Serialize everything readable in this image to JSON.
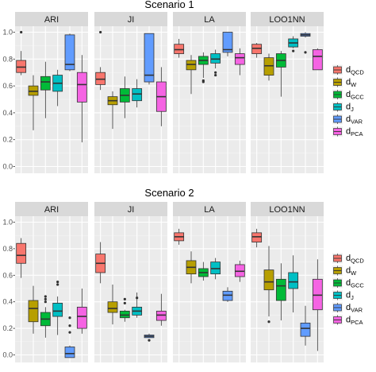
{
  "chart_data": {
    "type": "boxplot",
    "facets": [
      "ARI",
      "JI",
      "LA",
      "LOO1NN"
    ],
    "yticks": [
      "0.0",
      "0.2",
      "0.4",
      "0.6",
      "0.8",
      "1.0"
    ],
    "legend": [
      {
        "main": "d",
        "sub": "QCD",
        "color": "#F8766D"
      },
      {
        "main": "d",
        "sub": "W",
        "color": "#B79F00"
      },
      {
        "main": "d",
        "sub": "GCC",
        "color": "#00BA38"
      },
      {
        "main": "d",
        "sub": "J",
        "color": "#00BFC4"
      },
      {
        "main": "d",
        "sub": "VAR",
        "color": "#619CFF"
      },
      {
        "main": "d",
        "sub": "PCA",
        "color": "#F564E3"
      }
    ],
    "panels": [
      {
        "title": "Scenario 1",
        "ylim": [
          -0.02,
          1.05
        ],
        "facets": [
          {
            "name": "ARI",
            "boxes": [
              {
                "lo": 0.68,
                "q1": 0.7,
                "med": 0.74,
                "q3": 0.79,
                "hi": 0.86,
                "out": [
                  1.0
                ]
              },
              {
                "lo": 0.27,
                "q1": 0.53,
                "med": 0.56,
                "q3": 0.6,
                "hi": 0.68,
                "out": []
              },
              {
                "lo": 0.36,
                "q1": 0.57,
                "med": 0.63,
                "q3": 0.67,
                "hi": 0.78,
                "out": []
              },
              {
                "lo": 0.45,
                "q1": 0.56,
                "med": 0.62,
                "q3": 0.68,
                "hi": 0.72,
                "out": []
              },
              {
                "lo": 0.71,
                "q1": 0.72,
                "med": 0.76,
                "q3": 0.98,
                "hi": 0.99,
                "out": []
              },
              {
                "lo": 0.18,
                "q1": 0.48,
                "med": 0.61,
                "q3": 0.7,
                "hi": 0.83,
                "out": []
              }
            ]
          },
          {
            "name": "JI",
            "boxes": [
              {
                "lo": 0.57,
                "q1": 0.61,
                "med": 0.65,
                "q3": 0.7,
                "hi": 0.74,
                "out": [
                  1.0
                ]
              },
              {
                "lo": 0.28,
                "q1": 0.46,
                "med": 0.49,
                "q3": 0.52,
                "hi": 0.56,
                "out": []
              },
              {
                "lo": 0.36,
                "q1": 0.48,
                "med": 0.53,
                "q3": 0.58,
                "hi": 0.67,
                "out": []
              },
              {
                "lo": 0.44,
                "q1": 0.49,
                "med": 0.54,
                "q3": 0.58,
                "hi": 0.65,
                "out": []
              },
              {
                "lo": 0.61,
                "q1": 0.63,
                "med": 0.68,
                "q3": 0.99,
                "hi": 0.99,
                "out": []
              },
              {
                "lo": 0.3,
                "q1": 0.41,
                "med": 0.52,
                "q3": 0.63,
                "hi": 0.74,
                "out": []
              }
            ]
          },
          {
            "name": "LA",
            "boxes": [
              {
                "lo": 0.81,
                "q1": 0.84,
                "med": 0.87,
                "q3": 0.91,
                "hi": 0.95,
                "out": []
              },
              {
                "lo": 0.54,
                "q1": 0.72,
                "med": 0.76,
                "q3": 0.79,
                "hi": 0.83,
                "out": []
              },
              {
                "lo": 0.66,
                "q1": 0.76,
                "med": 0.79,
                "q3": 0.82,
                "hi": 0.85,
                "out": [
                  0.64,
                  0.63
                ]
              },
              {
                "lo": 0.73,
                "q1": 0.77,
                "med": 0.8,
                "q3": 0.84,
                "hi": 0.87,
                "out": [
                  0.7,
                  0.68
                ]
              },
              {
                "lo": 0.82,
                "q1": 0.85,
                "med": 0.87,
                "q3": 1.0,
                "hi": 1.0,
                "out": []
              },
              {
                "lo": 0.68,
                "q1": 0.76,
                "med": 0.81,
                "q3": 0.84,
                "hi": 0.88,
                "out": []
              }
            ]
          },
          {
            "name": "LOO1NN",
            "boxes": [
              {
                "lo": 0.81,
                "q1": 0.84,
                "med": 0.88,
                "q3": 0.91,
                "hi": 0.92,
                "out": []
              },
              {
                "lo": 0.64,
                "q1": 0.68,
                "med": 0.75,
                "q3": 0.81,
                "hi": 0.84,
                "out": []
              },
              {
                "lo": 0.52,
                "q1": 0.74,
                "med": 0.79,
                "q3": 0.84,
                "hi": 0.86,
                "out": []
              },
              {
                "lo": 0.88,
                "q1": 0.89,
                "med": 0.92,
                "q3": 0.95,
                "hi": 0.97,
                "out": [
                  0.86
                ]
              },
              {
                "lo": 0.96,
                "q1": 0.97,
                "med": 0.98,
                "q3": 0.99,
                "hi": 1.0,
                "out": [
                  0.85
                ]
              },
              {
                "lo": 0.72,
                "q1": 0.72,
                "med": 0.82,
                "q3": 0.87,
                "hi": 0.88,
                "out": []
              }
            ]
          }
        ]
      },
      {
        "title": "Scenario 2",
        "ylim": [
          -0.03,
          1.04
        ],
        "facets": [
          {
            "name": "ARI",
            "boxes": [
              {
                "lo": 0.58,
                "q1": 0.69,
                "med": 0.75,
                "q3": 0.84,
                "hi": 0.88,
                "out": []
              },
              {
                "lo": 0.16,
                "q1": 0.25,
                "med": 0.35,
                "q3": 0.41,
                "hi": 0.52,
                "out": []
              },
              {
                "lo": 0.13,
                "q1": 0.22,
                "med": 0.27,
                "q3": 0.32,
                "hi": 0.36,
                "out": [
                  0.4,
                  0.42,
                  0.44
                ]
              },
              {
                "lo": 0.15,
                "q1": 0.29,
                "med": 0.33,
                "q3": 0.39,
                "hi": 0.44,
                "out": [
                  0.53,
                  0.55
                ]
              },
              {
                "lo": -0.02,
                "q1": -0.02,
                "med": 0.01,
                "q3": 0.06,
                "hi": 0.07,
                "out": [
                  0.17,
                  0.22,
                  0.28
                ]
              },
              {
                "lo": 0.16,
                "q1": 0.2,
                "med": 0.29,
                "q3": 0.36,
                "hi": 0.5,
                "out": []
              }
            ]
          },
          {
            "name": "JI",
            "boxes": [
              {
                "lo": 0.54,
                "q1": 0.62,
                "med": 0.69,
                "q3": 0.76,
                "hi": 0.85,
                "out": []
              },
              {
                "lo": 0.23,
                "q1": 0.32,
                "med": 0.35,
                "q3": 0.4,
                "hi": 0.53,
                "out": []
              },
              {
                "lo": 0.25,
                "q1": 0.28,
                "med": 0.3,
                "q3": 0.33,
                "hi": 0.34,
                "out": [
                  0.39,
                  0.42
                ]
              },
              {
                "lo": 0.28,
                "q1": 0.3,
                "med": 0.33,
                "q3": 0.36,
                "hi": 0.47,
                "out": [
                  0.43
                ]
              },
              {
                "lo": 0.13,
                "q1": 0.13,
                "med": 0.14,
                "q3": 0.15,
                "hi": 0.16,
                "out": [
                  0.11
                ]
              },
              {
                "lo": 0.22,
                "q1": 0.26,
                "med": 0.3,
                "q3": 0.33,
                "hi": 0.46,
                "out": []
              }
            ]
          },
          {
            "name": "LA",
            "boxes": [
              {
                "lo": 0.83,
                "q1": 0.86,
                "med": 0.89,
                "q3": 0.92,
                "hi": 0.95,
                "out": []
              },
              {
                "lo": 0.54,
                "q1": 0.61,
                "med": 0.66,
                "q3": 0.71,
                "hi": 0.78,
                "out": []
              },
              {
                "lo": 0.56,
                "q1": 0.59,
                "med": 0.62,
                "q3": 0.65,
                "hi": 0.7,
                "out": []
              },
              {
                "lo": 0.57,
                "q1": 0.61,
                "med": 0.65,
                "q3": 0.7,
                "hi": 0.73,
                "out": []
              },
              {
                "lo": 0.4,
                "q1": 0.41,
                "med": 0.45,
                "q3": 0.48,
                "hi": 0.51,
                "out": []
              },
              {
                "lo": 0.55,
                "q1": 0.59,
                "med": 0.63,
                "q3": 0.68,
                "hi": 0.71,
                "out": []
              }
            ]
          },
          {
            "name": "LOO1NN",
            "boxes": [
              {
                "lo": 0.81,
                "q1": 0.85,
                "med": 0.89,
                "q3": 0.92,
                "hi": 0.95,
                "out": []
              },
              {
                "lo": 0.29,
                "q1": 0.49,
                "med": 0.55,
                "q3": 0.64,
                "hi": 0.82,
                "out": [
                  0.25
                ]
              },
              {
                "lo": 0.26,
                "q1": 0.41,
                "med": 0.52,
                "q3": 0.57,
                "hi": 0.69,
                "out": []
              },
              {
                "lo": 0.32,
                "q1": 0.5,
                "med": 0.55,
                "q3": 0.62,
                "hi": 0.75,
                "out": []
              },
              {
                "lo": 0.07,
                "q1": 0.14,
                "med": 0.2,
                "q3": 0.24,
                "hi": 0.37,
                "out": []
              },
              {
                "lo": 0.03,
                "q1": 0.34,
                "med": 0.45,
                "q3": 0.57,
                "hi": 0.72,
                "out": []
              }
            ]
          }
        ]
      }
    ]
  }
}
